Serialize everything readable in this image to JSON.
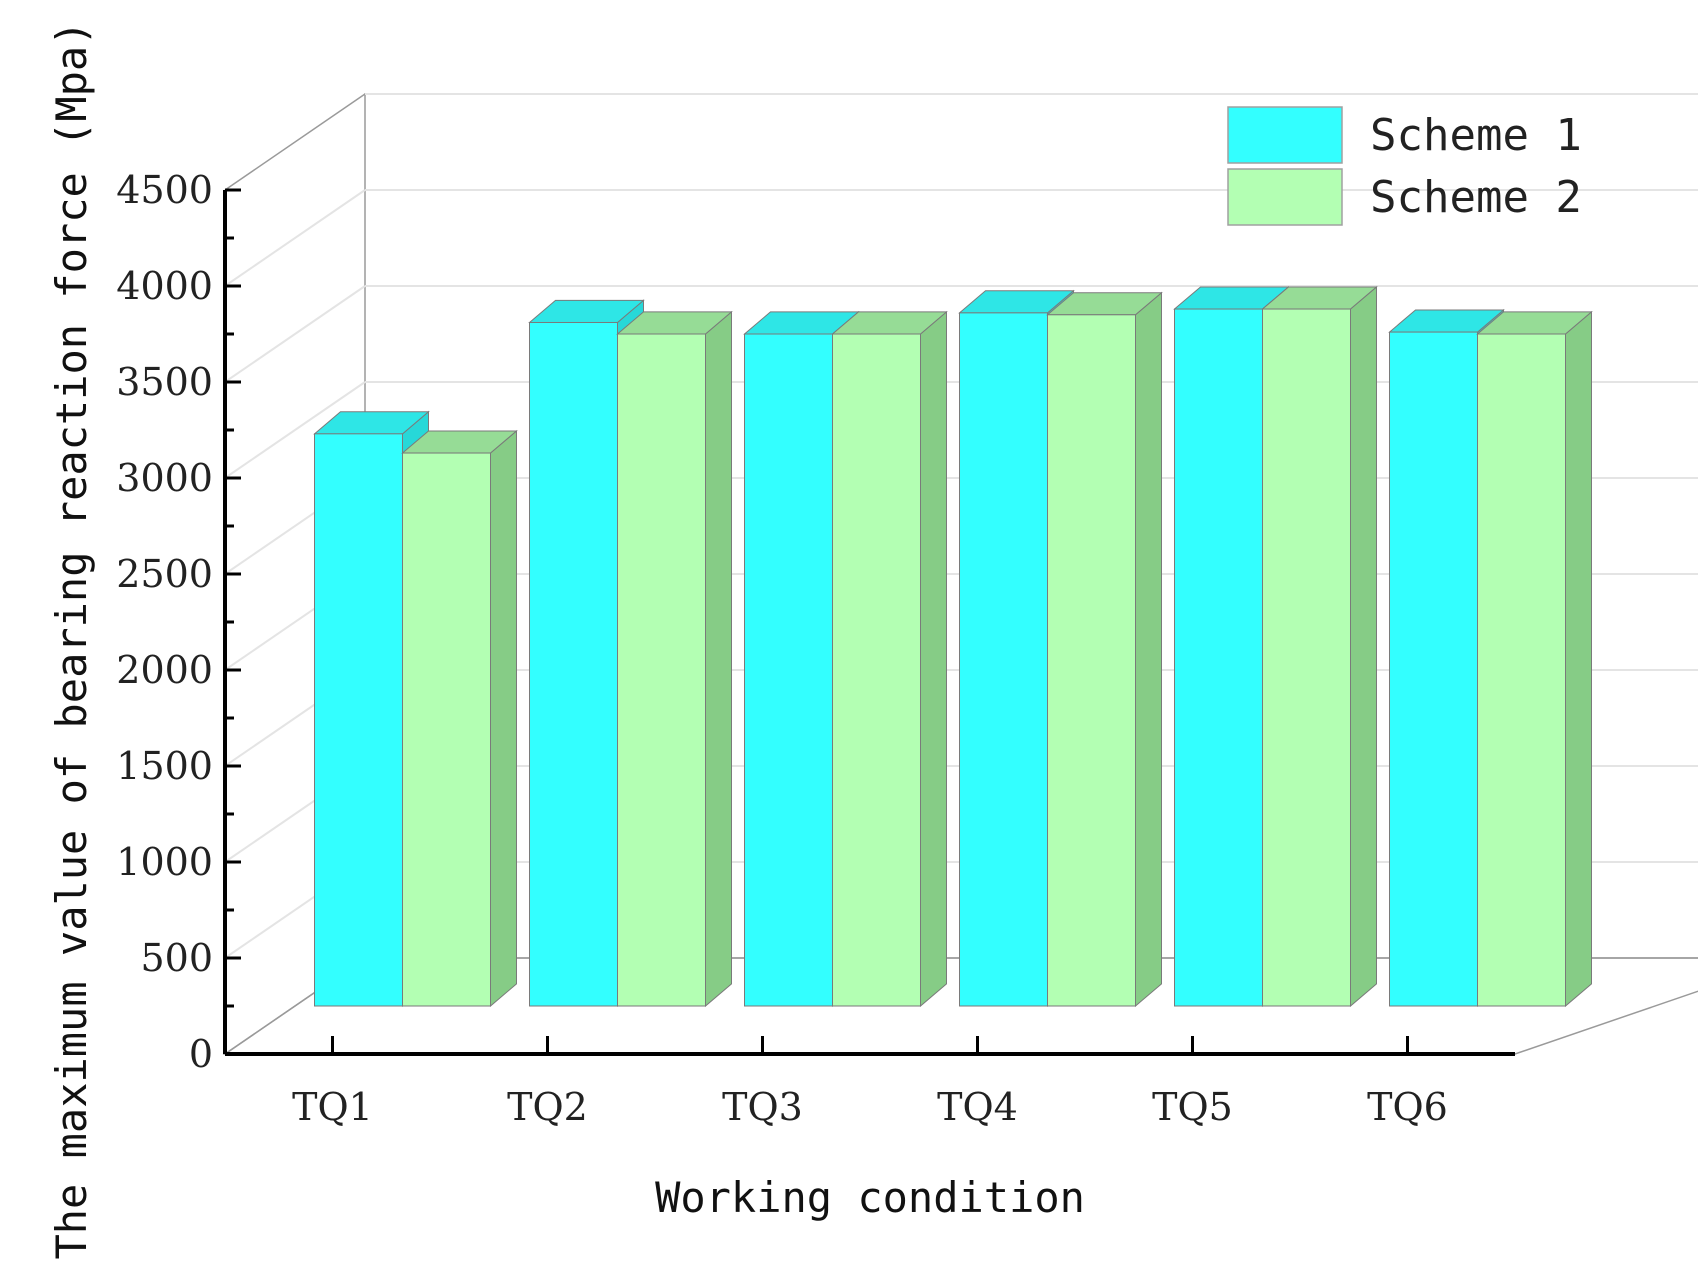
{
  "chart_data": {
    "type": "bar",
    "style": "3d",
    "categories": [
      "TQ1",
      "TQ2",
      "TQ3",
      "TQ4",
      "TQ5",
      "TQ6"
    ],
    "series": [
      {
        "name": "Scheme 1",
        "values": [
          2980,
          3560,
          3500,
          3610,
          3630,
          3510
        ],
        "color": "#33ffff"
      },
      {
        "name": "Scheme 2",
        "values": [
          2880,
          3500,
          3500,
          3600,
          3630,
          3500
        ],
        "color": "#b3ffb3"
      }
    ],
    "xlabel": "Working condition",
    "ylabel": "The maximum value of bearing reaction force (Mpa)",
    "ylim": [
      0,
      4500
    ],
    "yticks": [
      0,
      500,
      1000,
      1500,
      2000,
      2500,
      3000,
      3500,
      4000,
      4500
    ],
    "grid": true,
    "legend_position": "top-right"
  }
}
